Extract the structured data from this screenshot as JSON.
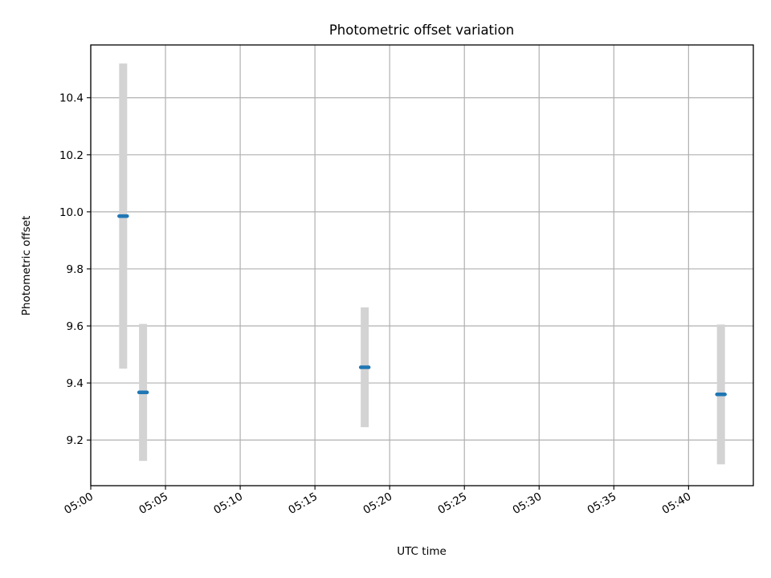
{
  "chart_data": {
    "type": "scatter",
    "title": "Photometric offset variation",
    "xlabel": "UTC time",
    "ylabel": "Photometric offset",
    "x_ticks": [
      "05:00",
      "05:05",
      "05:10",
      "05:15",
      "05:20",
      "05:25",
      "05:30",
      "05:35",
      "05:40"
    ],
    "y_ticks": [
      "9.2",
      "9.4",
      "9.6",
      "9.8",
      "10.0",
      "10.2",
      "10.4"
    ],
    "xlim": [
      "05:00:00",
      "05:44:20"
    ],
    "ylim": [
      9.04,
      10.585
    ],
    "grid": true,
    "series": [
      {
        "points": [
          {
            "x": "05:02:10",
            "y": 9.985,
            "yerr": 0.535
          },
          {
            "x": "05:03:30",
            "y": 9.367,
            "yerr": 0.24
          },
          {
            "x": "05:18:20",
            "y": 9.455,
            "yerr": 0.21
          },
          {
            "x": "05:42:10",
            "y": 9.36,
            "yerr": 0.245
          }
        ],
        "marker_color": "#1f77b4",
        "errorbar_color": "#d3d3d3"
      }
    ]
  }
}
